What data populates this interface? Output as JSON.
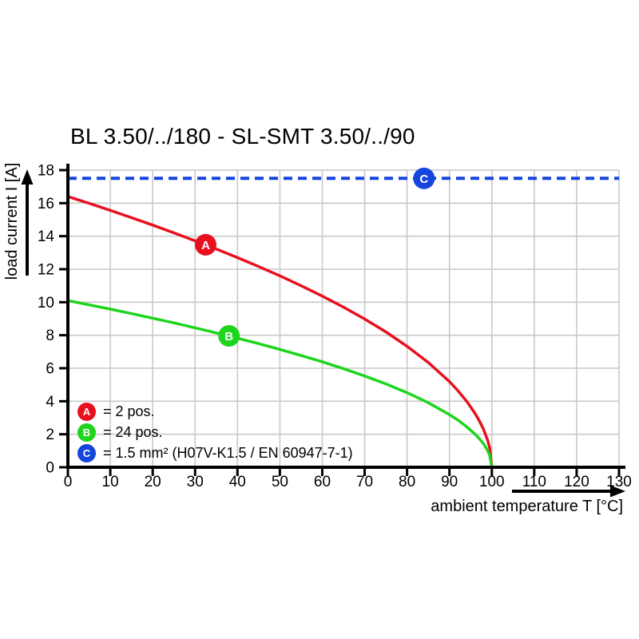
{
  "chart_data": {
    "type": "line",
    "title": "BL 3.50/../180 - SL-SMT 3.50/../90",
    "xlabel": "ambient temperature T [°C]",
    "ylabel": "load current I [A]",
    "xlim": [
      0,
      130
    ],
    "ylim": [
      0,
      18
    ],
    "xticks": [
      0,
      10,
      20,
      30,
      40,
      50,
      60,
      70,
      80,
      90,
      100,
      110,
      120,
      130
    ],
    "yticks": [
      0,
      2,
      4,
      6,
      8,
      10,
      12,
      14,
      16,
      18
    ],
    "grid": true,
    "colors": {
      "red": "#e8101e",
      "green": "#1ed51e",
      "blue": "#1545dd",
      "grid": "#c9c9c9",
      "axis": "#000000"
    },
    "series": [
      {
        "id": "A",
        "name": "2 pos.",
        "color": "#e8101e",
        "style": "solid",
        "points": [
          [
            0,
            16.4
          ],
          [
            5,
            15.99
          ],
          [
            10,
            15.56
          ],
          [
            15,
            15.12
          ],
          [
            20,
            14.67
          ],
          [
            25,
            14.2
          ],
          [
            30,
            13.72
          ],
          [
            35,
            13.22
          ],
          [
            40,
            12.7
          ],
          [
            45,
            12.16
          ],
          [
            50,
            11.6
          ],
          [
            55,
            11.0
          ],
          [
            60,
            10.37
          ],
          [
            65,
            9.7
          ],
          [
            70,
            8.98
          ],
          [
            75,
            8.2
          ],
          [
            80,
            7.33
          ],
          [
            85,
            6.35
          ],
          [
            90,
            5.19
          ],
          [
            92,
            4.64
          ],
          [
            94,
            4.02
          ],
          [
            96,
            3.28
          ],
          [
            97,
            2.84
          ],
          [
            98,
            2.32
          ],
          [
            99,
            1.64
          ],
          [
            99.5,
            1.16
          ],
          [
            100,
            0
          ]
        ],
        "marker": {
          "t": 32.5,
          "i": 13.48
        }
      },
      {
        "id": "B",
        "name": "24 pos.",
        "color": "#1ed51e",
        "style": "solid",
        "points": [
          [
            0,
            10.1
          ],
          [
            5,
            9.84
          ],
          [
            10,
            9.58
          ],
          [
            15,
            9.31
          ],
          [
            20,
            9.03
          ],
          [
            25,
            8.75
          ],
          [
            30,
            8.45
          ],
          [
            35,
            8.14
          ],
          [
            40,
            7.82
          ],
          [
            45,
            7.49
          ],
          [
            50,
            7.14
          ],
          [
            55,
            6.77
          ],
          [
            60,
            6.39
          ],
          [
            65,
            5.97
          ],
          [
            70,
            5.53
          ],
          [
            75,
            5.05
          ],
          [
            80,
            4.52
          ],
          [
            85,
            3.91
          ],
          [
            90,
            3.19
          ],
          [
            92,
            2.86
          ],
          [
            94,
            2.47
          ],
          [
            96,
            2.02
          ],
          [
            97,
            1.75
          ],
          [
            98,
            1.43
          ],
          [
            99,
            1.01
          ],
          [
            99.5,
            0.71
          ],
          [
            100,
            0
          ]
        ],
        "marker": {
          "t": 38,
          "i": 7.96
        }
      },
      {
        "id": "C",
        "name": "1.5 mm² (H07V-K1.5 / EN 60947-7-1)",
        "color": "#1545dd",
        "style": "dashed",
        "constant_value": 17.5,
        "points": [
          [
            0,
            17.5
          ],
          [
            130,
            17.5
          ]
        ],
        "marker": {
          "t": 84,
          "i": 17.5
        }
      }
    ],
    "legend": [
      {
        "key": "A",
        "label": "= 2 pos.",
        "color": "#e8101e"
      },
      {
        "key": "B",
        "label": "= 24 pos.",
        "color": "#1ed51e"
      },
      {
        "key": "C",
        "label": "= 1.5 mm² (H07V-K1.5 / EN 60947-7-1)",
        "color": "#1545dd"
      }
    ],
    "legend_position": "lower-left-inside"
  }
}
